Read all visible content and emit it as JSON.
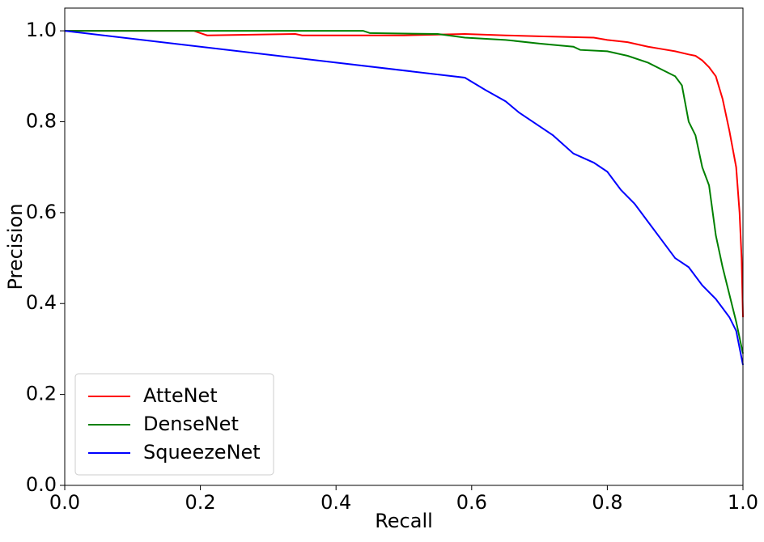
{
  "chart_data": {
    "type": "line",
    "x_label": "Recall",
    "y_label": "Precision",
    "xlim": [
      0,
      1
    ],
    "ylim": [
      0,
      1.05
    ],
    "xticks": [
      {
        "value": 0,
        "label": "0.0"
      },
      0.2,
      0.4,
      0.6,
      0.8,
      {
        "value": 1,
        "label": "1.0"
      }
    ],
    "yticks": [
      {
        "value": 0,
        "label": "0.0"
      },
      0.2,
      0.4,
      0.6,
      0.8,
      {
        "value": 1,
        "label": "1.0"
      }
    ],
    "grid": false,
    "legend": "lower left",
    "series": [
      {
        "name": "AtteNet",
        "color": "#ff0000",
        "x": [
          0,
          0.19,
          0.21,
          0.34,
          0.35,
          0.5,
          0.59,
          0.65,
          0.7,
          0.78,
          0.8,
          0.83,
          0.86,
          0.88,
          0.9,
          0.92,
          0.93,
          0.94,
          0.95,
          0.96,
          0.97,
          0.98,
          0.99,
          0.995,
          0.998,
          1.0
        ],
        "values": [
          1.0,
          1.0,
          0.99,
          0.993,
          0.99,
          0.99,
          0.993,
          0.99,
          0.988,
          0.985,
          0.98,
          0.975,
          0.965,
          0.96,
          0.955,
          0.948,
          0.945,
          0.935,
          0.92,
          0.9,
          0.85,
          0.78,
          0.7,
          0.6,
          0.5,
          0.37
        ]
      },
      {
        "name": "DenseNet",
        "color": "#008000",
        "x": [
          0,
          0.44,
          0.45,
          0.55,
          0.59,
          0.65,
          0.7,
          0.75,
          0.76,
          0.8,
          0.83,
          0.86,
          0.88,
          0.9,
          0.91,
          0.92,
          0.93,
          0.94,
          0.95,
          0.96,
          0.97,
          0.98,
          0.99,
          1.0
        ],
        "values": [
          1.0,
          1.0,
          0.995,
          0.993,
          0.985,
          0.98,
          0.972,
          0.965,
          0.958,
          0.955,
          0.945,
          0.93,
          0.915,
          0.9,
          0.88,
          0.8,
          0.77,
          0.7,
          0.66,
          0.55,
          0.48,
          0.42,
          0.36,
          0.29
        ]
      },
      {
        "name": "SqueezeNet",
        "color": "#0000ff",
        "x": [
          0,
          0.59,
          0.62,
          0.65,
          0.67,
          0.69,
          0.72,
          0.75,
          0.78,
          0.8,
          0.82,
          0.84,
          0.86,
          0.88,
          0.9,
          0.92,
          0.94,
          0.96,
          0.98,
          0.99,
          1.0
        ],
        "values": [
          1.0,
          0.897,
          0.87,
          0.845,
          0.82,
          0.8,
          0.77,
          0.73,
          0.71,
          0.69,
          0.65,
          0.62,
          0.58,
          0.54,
          0.5,
          0.48,
          0.44,
          0.41,
          0.37,
          0.34,
          0.265
        ]
      }
    ]
  }
}
